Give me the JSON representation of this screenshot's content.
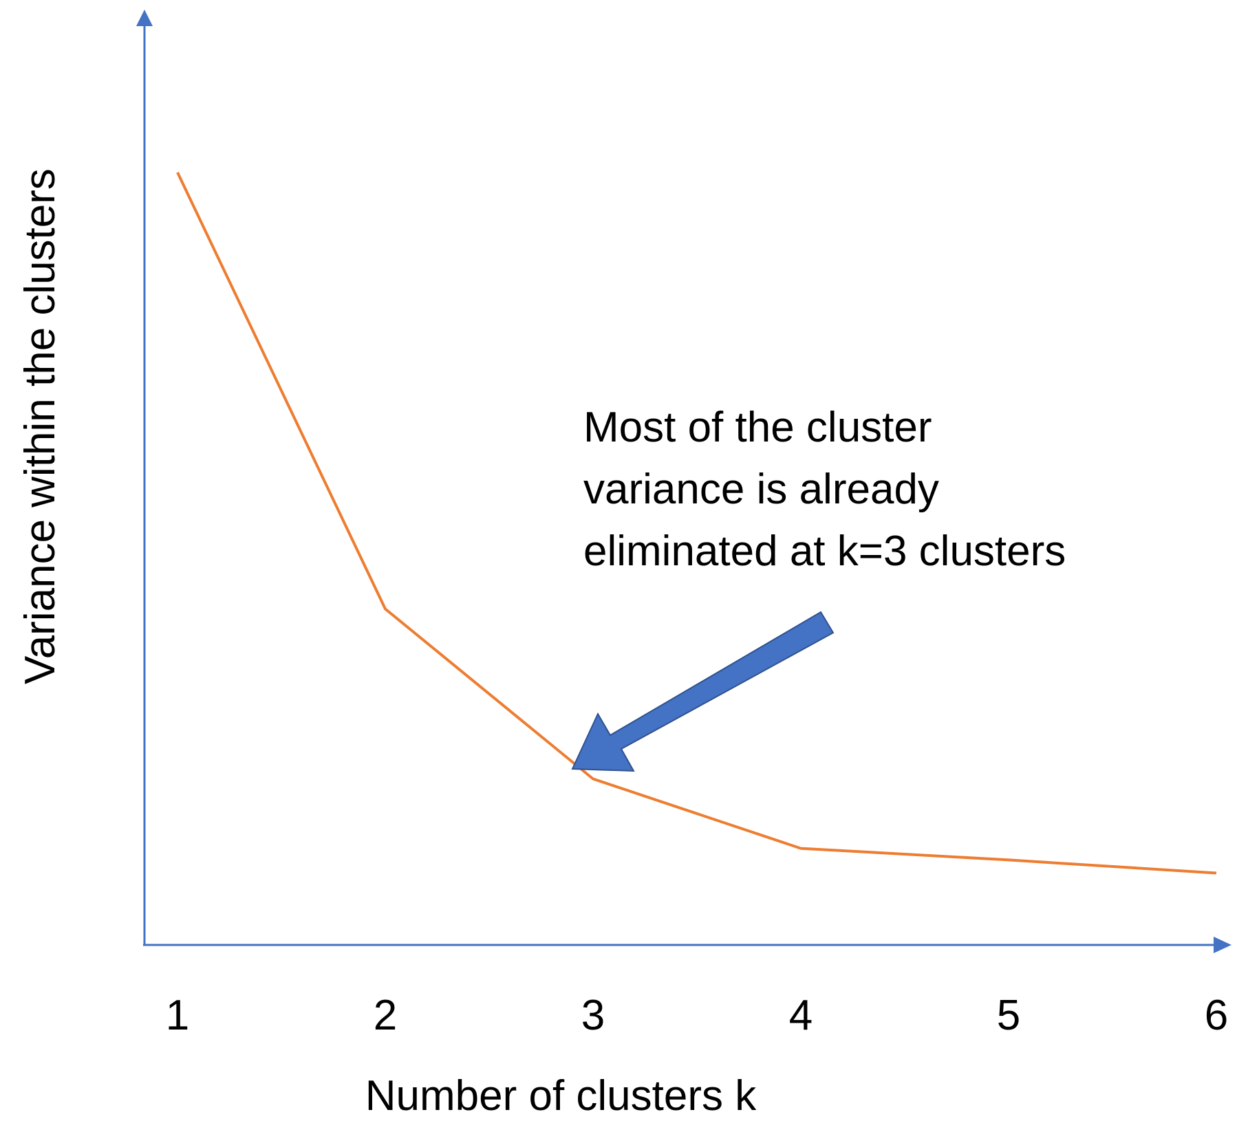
{
  "chart_data": {
    "type": "line",
    "x": [
      1,
      2,
      3,
      4,
      5,
      6
    ],
    "categories": [
      "1",
      "2",
      "3",
      "4",
      "5",
      "6"
    ],
    "series": [
      {
        "values": [
          100,
          43.5,
          21.5,
          12.5,
          11.0,
          9.3
        ],
        "color": "#ED7D31"
      }
    ],
    "xlabel": "Number of clusters k",
    "ylabel": "Variance within the clusters",
    "title": "",
    "ylim": [
      0,
      120
    ],
    "grid": false,
    "legend": "none",
    "axis_color": "#4472C4",
    "annotation": {
      "lines": [
        "Most of the cluster",
        "variance is already",
        "eliminated at k=3 clusters"
      ],
      "points_to_x": 3,
      "arrow_color": "#4472C4"
    }
  }
}
